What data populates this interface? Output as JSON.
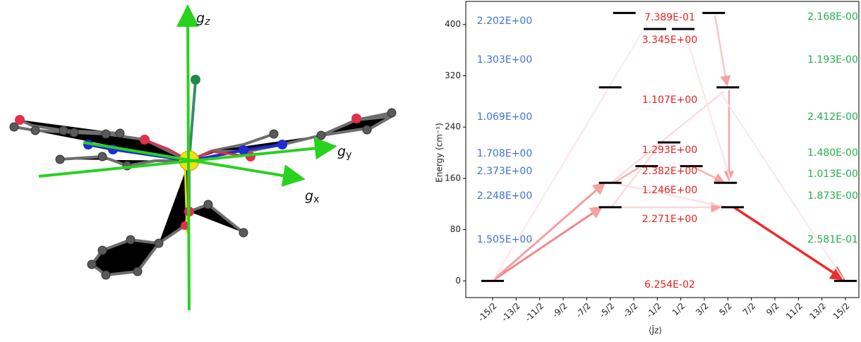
{
  "molecule": {
    "axes": [
      {
        "symbol": "g",
        "sub": "z"
      },
      {
        "symbol": "g",
        "sub": "y"
      },
      {
        "symbol": "g",
        "sub": "x"
      }
    ]
  },
  "chart_data": {
    "type": "levels",
    "ylabel": "Energy (cm⁻¹)",
    "xlabel": "⟨Ĵz⟩",
    "xlim": [
      -8.64,
      8.07
    ],
    "ylim": [
      -26,
      436
    ],
    "yticks": [
      0,
      80,
      160,
      240,
      320,
      400
    ],
    "xticks": [
      {
        "value": -7.5,
        "label": "-15/2"
      },
      {
        "value": -6.5,
        "label": "-13/2"
      },
      {
        "value": -5.5,
        "label": "-11/2"
      },
      {
        "value": -4.5,
        "label": "-9/2"
      },
      {
        "value": -3.5,
        "label": "-7/2"
      },
      {
        "value": -2.5,
        "label": "-5/2"
      },
      {
        "value": -1.5,
        "label": "-3/2"
      },
      {
        "value": -0.5,
        "label": "-1/2"
      },
      {
        "value": 0.5,
        "label": "1/2"
      },
      {
        "value": 1.5,
        "label": "3/2"
      },
      {
        "value": 2.5,
        "label": "5/2"
      },
      {
        "value": 3.5,
        "label": "7/2"
      },
      {
        "value": 4.5,
        "label": "9/2"
      },
      {
        "value": 5.5,
        "label": "11/2"
      },
      {
        "value": 6.5,
        "label": "13/2"
      },
      {
        "value": 7.5,
        "label": "15/2"
      }
    ],
    "level_color": "#000000",
    "x": [
      -7.5,
      7.5,
      -2.5,
      2.7,
      -2.5,
      2.4,
      -0.95,
      0.95,
      0,
      -2.5,
      2.5,
      -0.6,
      0.6,
      -1.9,
      1.9
    ],
    "values": [
      0,
      0,
      115,
      115,
      153,
      153,
      179,
      179,
      216,
      302,
      302,
      393,
      393,
      418,
      418
    ],
    "annotations": {
      "left": {
        "color": "#3d74d6",
        "texts": [
          "2.202E+00",
          "1.303E+00",
          "1.069E+00",
          "1.708E+00",
          "2.373E+00",
          "2.248E+00",
          "1.505E+00"
        ]
      },
      "center": {
        "color": "#e8221f",
        "texts": [
          "7.389E-01",
          "3.345E+00",
          "1.107E+00",
          "1.293E+00",
          "2.382E+00",
          "1.246E+00",
          "2.271E+00",
          "6.254E-02"
        ]
      },
      "right": {
        "color": "#23b24a",
        "texts": [
          "2.168E-00",
          "1.193E-00",
          "2.412E-00",
          "1.480E-00",
          "1.013E-00",
          "1.873E-00",
          "2.581E-01"
        ]
      }
    }
  }
}
